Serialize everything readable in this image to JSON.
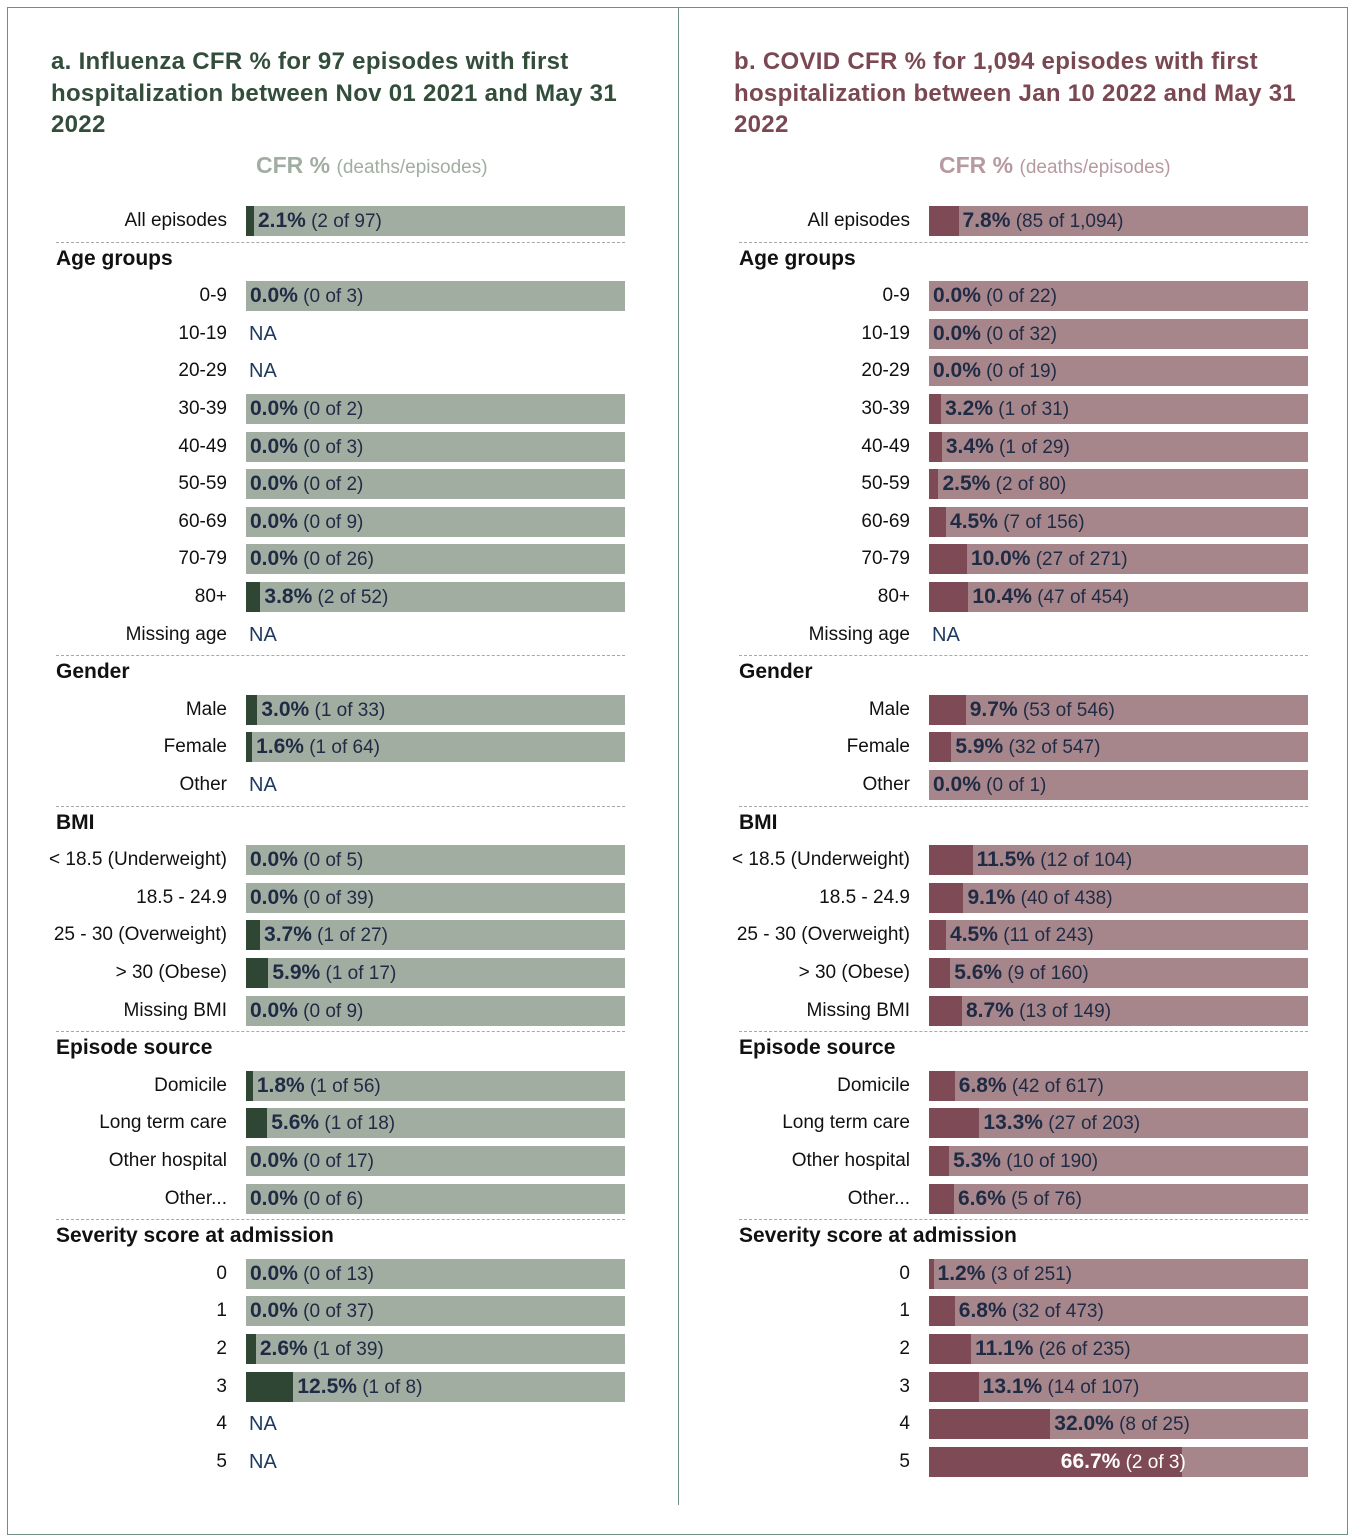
{
  "header": {
    "cfr_label": "CFR %",
    "cfr_sub": "(deaths/episodes)"
  },
  "sections_order": [
    "overall",
    "age",
    "gender",
    "bmi",
    "source",
    "severity"
  ],
  "section_titles": {
    "overall": "",
    "age": "Age groups",
    "gender": "Gender",
    "bmi": "BMI",
    "source": "Episode source",
    "severity": "Severity score at admission"
  },
  "chart_data": [
    {
      "type": "bar",
      "title": "a. Influenza CFR % for 97 episodes with first hospitalization between Nov 01 2021 and May 31 2022",
      "colors": {
        "title": "#334d3b",
        "fill": "#2f4634",
        "bg": "#a1ada1",
        "head": "#a1ada1"
      },
      "rows": [
        {
          "section": "overall",
          "label": "All episodes",
          "pct": "2.1%",
          "value": 2.1,
          "count": "(2 of 97)"
        },
        {
          "section": "age",
          "label": "0-9",
          "pct": "0.0%",
          "value": 0.0,
          "count": "(0 of 3)"
        },
        {
          "section": "age",
          "label": "10-19",
          "na": "NA"
        },
        {
          "section": "age",
          "label": "20-29",
          "na": "NA"
        },
        {
          "section": "age",
          "label": "30-39",
          "pct": "0.0%",
          "value": 0.0,
          "count": "(0 of 2)"
        },
        {
          "section": "age",
          "label": "40-49",
          "pct": "0.0%",
          "value": 0.0,
          "count": "(0 of 3)"
        },
        {
          "section": "age",
          "label": "50-59",
          "pct": "0.0%",
          "value": 0.0,
          "count": "(0 of 2)"
        },
        {
          "section": "age",
          "label": "60-69",
          "pct": "0.0%",
          "value": 0.0,
          "count": "(0 of 9)"
        },
        {
          "section": "age",
          "label": "70-79",
          "pct": "0.0%",
          "value": 0.0,
          "count": "(0 of 26)"
        },
        {
          "section": "age",
          "label": "80+",
          "pct": "3.8%",
          "value": 3.8,
          "count": "(2 of 52)"
        },
        {
          "section": "age",
          "label": "Missing age",
          "na": "NA"
        },
        {
          "section": "gender",
          "label": "Male",
          "pct": "3.0%",
          "value": 3.0,
          "count": "(1 of 33)"
        },
        {
          "section": "gender",
          "label": "Female",
          "pct": "1.6%",
          "value": 1.6,
          "count": "(1 of 64)"
        },
        {
          "section": "gender",
          "label": "Other",
          "na": "NA"
        },
        {
          "section": "bmi",
          "label": "< 18.5 (Underweight)",
          "pct": "0.0%",
          "value": 0.0,
          "count": "(0 of 5)"
        },
        {
          "section": "bmi",
          "label": "18.5 - 24.9",
          "pct": "0.0%",
          "value": 0.0,
          "count": "(0 of 39)"
        },
        {
          "section": "bmi",
          "label": "25 - 30 (Overweight)",
          "pct": "3.7%",
          "value": 3.7,
          "count": "(1 of 27)"
        },
        {
          "section": "bmi",
          "label": "> 30 (Obese)",
          "pct": "5.9%",
          "value": 5.9,
          "count": "(1 of 17)"
        },
        {
          "section": "bmi",
          "label": "Missing BMI",
          "pct": "0.0%",
          "value": 0.0,
          "count": "(0 of 9)"
        },
        {
          "section": "source",
          "label": "Domicile",
          "pct": "1.8%",
          "value": 1.8,
          "count": "(1 of 56)"
        },
        {
          "section": "source",
          "label": "Long term care",
          "pct": "5.6%",
          "value": 5.6,
          "count": "(1 of 18)"
        },
        {
          "section": "source",
          "label": "Other hospital",
          "pct": "0.0%",
          "value": 0.0,
          "count": "(0 of 17)"
        },
        {
          "section": "source",
          "label": "Other...",
          "pct": "0.0%",
          "value": 0.0,
          "count": "(0 of 6)"
        },
        {
          "section": "severity",
          "label": "0",
          "pct": "0.0%",
          "value": 0.0,
          "count": "(0 of 13)"
        },
        {
          "section": "severity",
          "label": "1",
          "pct": "0.0%",
          "value": 0.0,
          "count": "(0 of 37)"
        },
        {
          "section": "severity",
          "label": "2",
          "pct": "2.6%",
          "value": 2.6,
          "count": "(1 of 39)"
        },
        {
          "section": "severity",
          "label": "3",
          "pct": "12.5%",
          "value": 12.5,
          "count": "(1 of 8)"
        },
        {
          "section": "severity",
          "label": "4",
          "na": "NA"
        },
        {
          "section": "severity",
          "label": "5",
          "na": "NA"
        }
      ]
    },
    {
      "type": "bar",
      "title": "b. COVID CFR % for 1,094 episodes with first hospitalization between Jan 10 2022 and May 31 2022",
      "colors": {
        "title": "#7a4852",
        "fill": "#7d4a55",
        "bg": "#a6868b",
        "head": "#b69aa0"
      },
      "rows": [
        {
          "section": "overall",
          "label": "All episodes",
          "pct": "7.8%",
          "value": 7.8,
          "count": "(85 of 1,094)"
        },
        {
          "section": "age",
          "label": "0-9",
          "pct": "0.0%",
          "value": 0.0,
          "count": "(0 of 22)"
        },
        {
          "section": "age",
          "label": "10-19",
          "pct": "0.0%",
          "value": 0.0,
          "count": "(0 of 32)"
        },
        {
          "section": "age",
          "label": "20-29",
          "pct": "0.0%",
          "value": 0.0,
          "count": "(0 of 19)"
        },
        {
          "section": "age",
          "label": "30-39",
          "pct": "3.2%",
          "value": 3.2,
          "count": "(1 of 31)"
        },
        {
          "section": "age",
          "label": "40-49",
          "pct": "3.4%",
          "value": 3.4,
          "count": "(1 of 29)"
        },
        {
          "section": "age",
          "label": "50-59",
          "pct": "2.5%",
          "value": 2.5,
          "count": "(2 of 80)"
        },
        {
          "section": "age",
          "label": "60-69",
          "pct": "4.5%",
          "value": 4.5,
          "count": "(7 of 156)"
        },
        {
          "section": "age",
          "label": "70-79",
          "pct": "10.0%",
          "value": 10.0,
          "count": "(27 of 271)"
        },
        {
          "section": "age",
          "label": "80+",
          "pct": "10.4%",
          "value": 10.4,
          "count": "(47 of 454)"
        },
        {
          "section": "age",
          "label": "Missing age",
          "na": "NA"
        },
        {
          "section": "gender",
          "label": "Male",
          "pct": "9.7%",
          "value": 9.7,
          "count": "(53 of 546)"
        },
        {
          "section": "gender",
          "label": "Female",
          "pct": "5.9%",
          "value": 5.9,
          "count": "(32 of 547)"
        },
        {
          "section": "gender",
          "label": "Other",
          "pct": "0.0%",
          "value": 0.0,
          "count": "(0 of 1)"
        },
        {
          "section": "bmi",
          "label": "< 18.5 (Underweight)",
          "pct": "11.5%",
          "value": 11.5,
          "count": "(12 of 104)"
        },
        {
          "section": "bmi",
          "label": "18.5 - 24.9",
          "pct": "9.1%",
          "value": 9.1,
          "count": "(40 of 438)"
        },
        {
          "section": "bmi",
          "label": "25 - 30 (Overweight)",
          "pct": "4.5%",
          "value": 4.5,
          "count": "(11 of 243)"
        },
        {
          "section": "bmi",
          "label": "> 30 (Obese)",
          "pct": "5.6%",
          "value": 5.6,
          "count": "(9 of 160)"
        },
        {
          "section": "bmi",
          "label": "Missing BMI",
          "pct": "8.7%",
          "value": 8.7,
          "count": "(13 of 149)"
        },
        {
          "section": "source",
          "label": "Domicile",
          "pct": "6.8%",
          "value": 6.8,
          "count": "(42 of 617)"
        },
        {
          "section": "source",
          "label": "Long term care",
          "pct": "13.3%",
          "value": 13.3,
          "count": "(27 of 203)"
        },
        {
          "section": "source",
          "label": "Other hospital",
          "pct": "5.3%",
          "value": 5.3,
          "count": "(10 of 190)"
        },
        {
          "section": "source",
          "label": "Other...",
          "pct": "6.6%",
          "value": 6.6,
          "count": "(5 of 76)"
        },
        {
          "section": "severity",
          "label": "0",
          "pct": "1.2%",
          "value": 1.2,
          "count": "(3 of 251)"
        },
        {
          "section": "severity",
          "label": "1",
          "pct": "6.8%",
          "value": 6.8,
          "count": "(32 of 473)"
        },
        {
          "section": "severity",
          "label": "2",
          "pct": "11.1%",
          "value": 11.1,
          "count": "(26 of 235)"
        },
        {
          "section": "severity",
          "label": "3",
          "pct": "13.1%",
          "value": 13.1,
          "count": "(14 of 107)"
        },
        {
          "section": "severity",
          "label": "4",
          "pct": "32.0%",
          "value": 32.0,
          "count": "(8 of 25)"
        },
        {
          "section": "severity",
          "label": "5",
          "pct": "66.7%",
          "value": 66.7,
          "count": "(2 of 3)"
        }
      ]
    }
  ]
}
